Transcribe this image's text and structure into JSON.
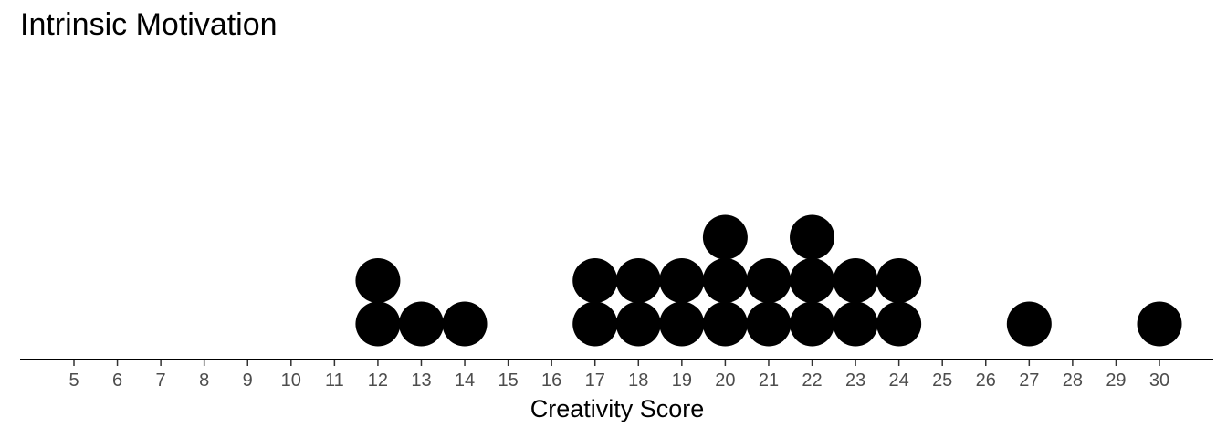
{
  "chart_data": {
    "type": "dotplot",
    "title": "Intrinsic Motivation",
    "xlabel": "Creativity Score",
    "ylabel": "",
    "xlim": [
      5,
      30
    ],
    "x_ticks": [
      5,
      6,
      7,
      8,
      9,
      10,
      11,
      12,
      13,
      14,
      15,
      16,
      17,
      18,
      19,
      20,
      21,
      22,
      23,
      24,
      25,
      26,
      27,
      28,
      29,
      30
    ],
    "points": [
      {
        "x": 12,
        "count": 2
      },
      {
        "x": 13,
        "count": 1
      },
      {
        "x": 14,
        "count": 1
      },
      {
        "x": 17,
        "count": 2
      },
      {
        "x": 18,
        "count": 2
      },
      {
        "x": 19,
        "count": 2
      },
      {
        "x": 20,
        "count": 3
      },
      {
        "x": 21,
        "count": 2
      },
      {
        "x": 22,
        "count": 3
      },
      {
        "x": 23,
        "count": 2
      },
      {
        "x": 24,
        "count": 2
      },
      {
        "x": 27,
        "count": 1
      },
      {
        "x": 30,
        "count": 1
      }
    ],
    "dot_color": "#000000",
    "grid": false
  }
}
